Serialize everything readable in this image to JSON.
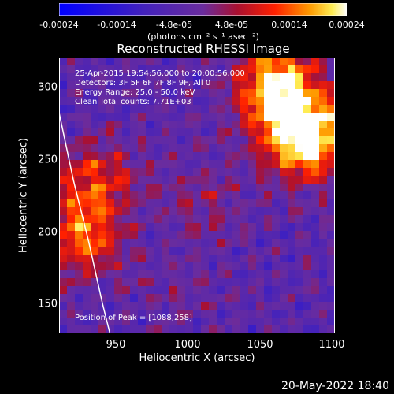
{
  "colorbar": {
    "ticks": [
      "-0.00024",
      "-0.00014",
      "-4.8e-05",
      "4.8e-05",
      "0.00014",
      "0.00024"
    ],
    "units": "(photons cm⁻² s⁻¹ asec⁻²)"
  },
  "plot": {
    "title": "Reconstructed RHESSI Image",
    "info_lines": [
      "25-Apr-2015 19:54:56.000 to 20:00:56.000",
      "Detectors: 3F 5F 6F 7F 8F 9F, All 0",
      "Energy Range: 25.0 - 50.0 keV",
      "Clean     Total counts: 7.71E+03"
    ],
    "peak_label": "Position of Peak = [1088,258]",
    "x_axis_label": "Heliocentric X (arcsec)",
    "y_axis_label": "Heliocentric Y (arcsec)",
    "x_ticks": [
      "950",
      "1000",
      "1050",
      "1100"
    ],
    "y_ticks": [
      "300",
      "250",
      "200",
      "150"
    ]
  },
  "date_stamp": "20-May-2022 18:40",
  "chart_data": {
    "type": "heatmap",
    "title": "Reconstructed RHESSI Image",
    "xlabel": "Heliocentric X (arcsec)",
    "ylabel": "Heliocentric Y (arcsec)",
    "xlim": [
      910,
      1100
    ],
    "ylim": [
      130,
      320
    ],
    "colorbar_range": [
      -0.00024,
      0.00024
    ],
    "peak": [
      1088,
      258
    ],
    "bright_regions": [
      {
        "center": [
          1080,
          265
        ],
        "level": 0.95
      },
      {
        "center": [
          1060,
          300
        ],
        "level": 0.85
      },
      {
        "center": [
          935,
          235
        ],
        "level": 0.65
      },
      {
        "center": [
          925,
          195
        ],
        "level": 0.7
      },
      {
        "center": [
          1010,
          220
        ],
        "level": 0.5
      },
      {
        "center": [
          990,
          160
        ],
        "level": 0.45
      }
    ],
    "limb_curve": {
      "x": [
        910,
        920,
        930,
        940,
        945
      ],
      "y": [
        282,
        235,
        195,
        150,
        130
      ]
    },
    "colors": {
      "low": "#0000ff",
      "mid": "#6a2c9e",
      "high": "#ffffff"
    }
  }
}
